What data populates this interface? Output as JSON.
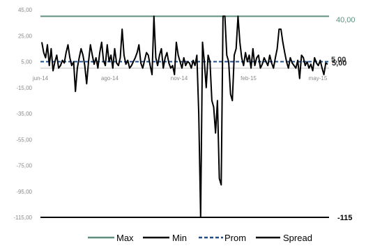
{
  "chart_data": {
    "type": "line",
    "title": "",
    "xlabel": "",
    "ylabel": "",
    "ylim": [
      -115,
      45
    ],
    "y_ticks": [
      "45,00",
      "25,00",
      "5,00",
      "-15,00",
      "-35,00",
      "-55,00",
      "-75,00",
      "-95,00",
      "-115,00"
    ],
    "x_ticks": [
      "jun-14",
      "ago-14",
      "nov-14",
      "feb-15",
      "may-15"
    ],
    "grid": false,
    "legend_position": "bottom",
    "series": [
      {
        "name": "Max",
        "color": "#5f8f80",
        "style": "solid",
        "values": [
          40,
          40
        ]
      },
      {
        "name": "Min",
        "color": "#000000",
        "style": "solid",
        "values": [
          -115,
          -115
        ]
      },
      {
        "name": "Prom",
        "color": "#1f4e8c",
        "style": "dashed",
        "values": [
          5,
          5
        ]
      },
      {
        "name": "Spread",
        "color": "#000000",
        "style": "solid",
        "values": [
          20,
          12,
          8,
          18,
          2,
          15,
          -2,
          5,
          10,
          0,
          2,
          6,
          4,
          12,
          18,
          8,
          2,
          5,
          -18,
          0,
          8,
          15,
          10,
          2,
          -12,
          5,
          18,
          10,
          3,
          8,
          0,
          12,
          20,
          6,
          2,
          18,
          5,
          10,
          0,
          15,
          4,
          2,
          8,
          30,
          10,
          3,
          6,
          0,
          2,
          5,
          8,
          12,
          18,
          4,
          0,
          6,
          12,
          10,
          2,
          -5,
          40,
          8,
          2,
          10,
          15,
          0,
          8,
          12,
          4,
          0,
          2,
          -5,
          20,
          10,
          5,
          0,
          8,
          2,
          5,
          4,
          0,
          6,
          2,
          10,
          -35,
          -115,
          20,
          5,
          -15,
          10,
          5,
          -25,
          -30,
          -50,
          -25,
          -85,
          -90,
          40,
          40,
          10,
          5,
          -20,
          -25,
          10,
          15,
          40,
          20,
          8,
          2,
          12,
          5,
          10,
          0,
          15,
          2,
          8,
          10,
          0,
          3,
          8,
          5,
          2,
          10,
          4,
          0,
          8,
          15,
          30,
          30,
          20,
          12,
          5,
          0,
          8,
          4,
          2,
          0,
          6,
          -8,
          10,
          8,
          2,
          5,
          0,
          3,
          -2,
          8,
          4,
          2,
          6,
          0,
          -5,
          4,
          3
        ]
      }
    ],
    "right_labels": {
      "max": "40,00",
      "prom_upper": "5,00",
      "prom_lower": "5,00",
      "min": "-115"
    }
  }
}
